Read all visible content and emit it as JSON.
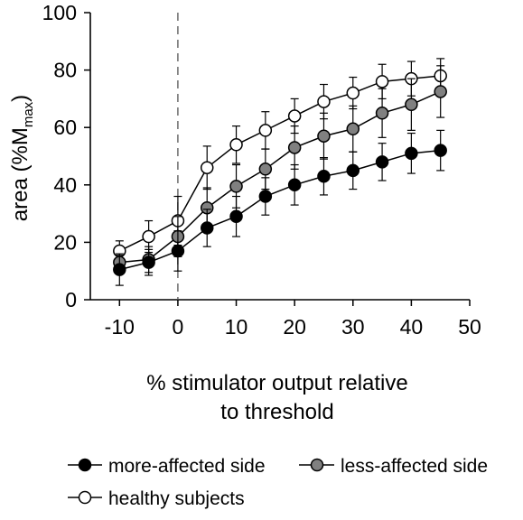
{
  "chart_data": {
    "type": "line",
    "title": "",
    "xlabel_line1": "% stimulator output relative",
    "xlabel_line2": "to threshold",
    "ylabel_main": "area (%M",
    "ylabel_sub": "max",
    "ylabel_close": ")",
    "xlim": [
      -15,
      50
    ],
    "ylim": [
      0,
      100
    ],
    "xticks": [
      -10,
      0,
      10,
      20,
      30,
      40,
      50
    ],
    "yticks": [
      0,
      20,
      40,
      60,
      80,
      100
    ],
    "x_tick_labels": [
      "-10",
      "0",
      "10",
      "20",
      "30",
      "40",
      "50"
    ],
    "y_tick_labels": [
      "0",
      "20",
      "40",
      "60",
      "80",
      "100"
    ],
    "threshold_line_x": 0,
    "grid": false,
    "legend_position": "bottom",
    "x": [
      -10,
      -5,
      0,
      5,
      10,
      15,
      20,
      25,
      30,
      35,
      40,
      45
    ],
    "series": [
      {
        "name": "healthy subjects",
        "marker_fill": "#ffffff",
        "values": [
          17,
          22,
          27.5,
          46,
          54,
          59,
          64,
          69,
          72,
          76,
          77,
          78
        ],
        "error": [
          3.5,
          5.5,
          8.5,
          7.5,
          6.5,
          6.5,
          6,
          6,
          5.5,
          6,
          6,
          6
        ]
      },
      {
        "name": "less-affected side",
        "marker_fill": "#808080",
        "values": [
          13,
          14,
          22,
          32,
          39.5,
          45.5,
          53,
          57,
          59.5,
          65,
          68,
          72.5
        ],
        "error": [
          2.5,
          4.5,
          7,
          7,
          7.5,
          7,
          7.5,
          8,
          8,
          8.5,
          9,
          9
        ]
      },
      {
        "name": "more-affected side",
        "marker_fill": "#000000",
        "values": [
          10.5,
          13,
          17,
          25,
          29,
          36,
          40,
          43,
          45,
          48,
          51,
          52
        ],
        "error": [
          5.5,
          4.5,
          7,
          6.5,
          7,
          6.5,
          7,
          6.5,
          6.5,
          6.5,
          7,
          7
        ]
      }
    ]
  },
  "legend": {
    "more_affected": "more-affected side",
    "less_affected": "less-affected side",
    "healthy": "healthy subjects"
  },
  "colors": {
    "line": "#000000",
    "filled_black": "#000000",
    "filled_gray": "#808080",
    "open": "#ffffff"
  }
}
